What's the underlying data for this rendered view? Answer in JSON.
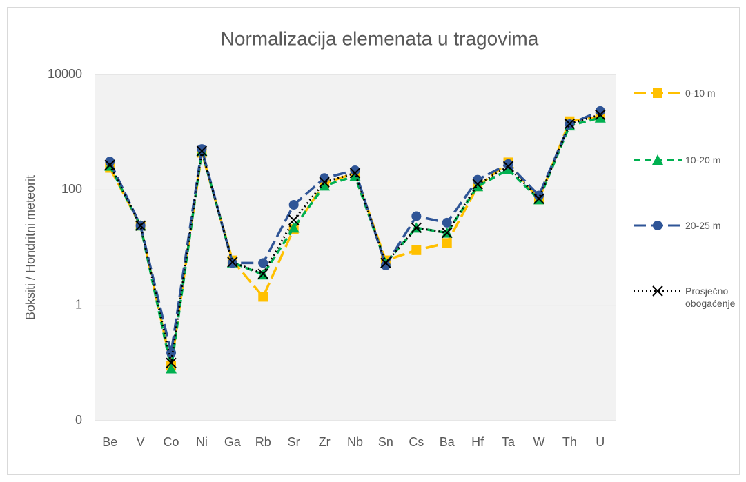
{
  "chart_data": {
    "type": "line",
    "title": "Normalizacija elemenata u tragovima",
    "y_label": "Boksiti / Hondritni meteorit",
    "log_scale": true,
    "grid": true,
    "categories": [
      "Be",
      "V",
      "Co",
      "Ni",
      "Ga",
      "Rb",
      "Sr",
      "Zr",
      "Nb",
      "Sn",
      "Cs",
      "Ba",
      "Hf",
      "Ta",
      "W",
      "Th",
      "U"
    ],
    "ylim": [
      0.01,
      10000
    ],
    "yticks": [
      {
        "value": 0.01,
        "label": "0"
      },
      1,
      100,
      10000
    ],
    "legend": "right",
    "series": [
      {
        "name": "0-10 m",
        "color": "#ffc000",
        "marker": "square",
        "dash": "long",
        "values": [
          240,
          24,
          0.09,
          440,
          6,
          1.4,
          21,
          130,
          195,
          6,
          9,
          12,
          115,
          300,
          68,
          1550,
          1850
        ]
      },
      {
        "name": "10-20 m",
        "color": "#00b050",
        "marker": "triangle",
        "dash": "dash",
        "values": [
          260,
          24,
          0.08,
          470,
          5.5,
          3.4,
          22,
          118,
          174,
          5.4,
          22,
          18,
          115,
          224,
          68,
          1300,
          1780
        ]
      },
      {
        "name": "20-25 m",
        "color": "#2f5597",
        "marker": "circle",
        "dash": "long",
        "values": [
          310,
          24,
          0.15,
          510,
          5.4,
          5.4,
          55,
          160,
          218,
          4.9,
          35,
          27,
          150,
          280,
          80,
          1380,
          2330
        ]
      },
      {
        "name": "Prosječno obogaćenje",
        "color": "#000000",
        "marker": "x",
        "dash": "dot",
        "values": [
          270,
          24,
          0.1,
          470,
          5.6,
          3.5,
          30,
          136,
          195,
          5.4,
          22,
          18,
          125,
          255,
          70,
          1400,
          2000
        ]
      }
    ]
  }
}
